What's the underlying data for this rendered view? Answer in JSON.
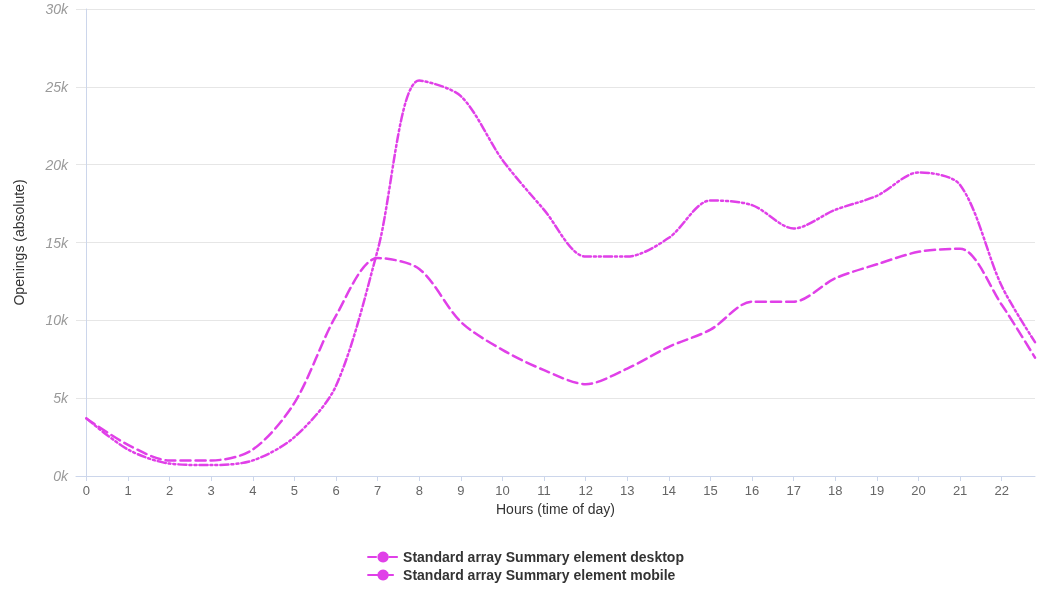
{
  "chart_data": {
    "type": "line",
    "xlabel": "Hours (time of day)",
    "ylabel": "Openings (absolute)",
    "x": [
      0,
      1,
      2,
      3,
      4,
      5,
      6,
      7,
      8,
      9,
      10,
      11,
      12,
      13,
      14,
      15,
      16,
      17,
      18,
      19,
      20,
      21,
      22,
      22.8
    ],
    "xlim": [
      -0.25,
      22.8
    ],
    "xticks": [
      0,
      1,
      2,
      3,
      4,
      5,
      6,
      7,
      8,
      9,
      10,
      11,
      12,
      13,
      14,
      15,
      16,
      17,
      18,
      19,
      20,
      21,
      22
    ],
    "ylim": [
      0,
      30000
    ],
    "yticks": [
      {
        "value": 0,
        "label": "0k"
      },
      {
        "value": 5000,
        "label": "5k"
      },
      {
        "value": 10000,
        "label": "10k"
      },
      {
        "value": 15000,
        "label": "15k"
      },
      {
        "value": 20000,
        "label": "20k"
      },
      {
        "value": 25000,
        "label": "25k"
      },
      {
        "value": 30000,
        "label": "30k"
      }
    ],
    "grid": "y",
    "legend": "bottom",
    "marker": "none",
    "series": [
      {
        "name": "Standard array Summary element desktop",
        "color": "#e040e8",
        "line_style": "dashdot",
        "values": [
          3700,
          1700,
          800,
          700,
          1000,
          2500,
          5800,
          14500,
          25400,
          24400,
          20300,
          17100,
          14100,
          14100,
          15300,
          17700,
          17400,
          15900,
          17100,
          18000,
          19500,
          18700,
          12200,
          8600
        ]
      },
      {
        "name": "Standard array Summary element mobile",
        "color": "#e040e8",
        "line_style": "dashed",
        "values": [
          3700,
          2000,
          1000,
          1000,
          1700,
          4700,
          10300,
          14000,
          13300,
          9900,
          8100,
          6800,
          5900,
          6900,
          8300,
          9400,
          11200,
          11200,
          12700,
          13600,
          14400,
          14600,
          11000,
          7600
        ]
      }
    ]
  }
}
